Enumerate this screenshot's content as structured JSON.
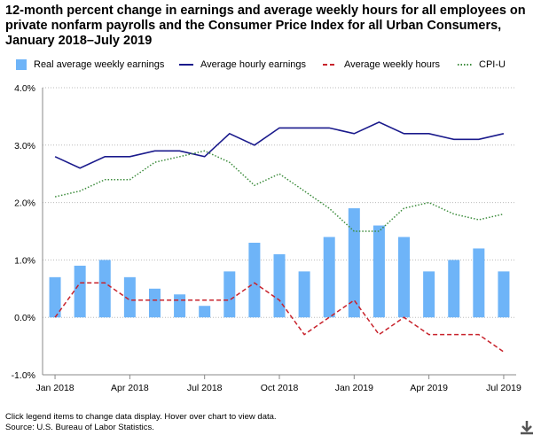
{
  "chart_data": {
    "type": "bar-line",
    "title": "12-month percent change in earnings and average weekly hours for all employees on private nonfarm payrolls and the Consumer Price Index for all Urban Consumers, January 2018–July 2019",
    "x": [
      "Jan 2018",
      "Feb 2018",
      "Mar 2018",
      "Apr 2018",
      "May 2018",
      "Jun 2018",
      "Jul 2018",
      "Aug 2018",
      "Sep 2018",
      "Oct 2018",
      "Nov 2018",
      "Dec 2018",
      "Jan 2019",
      "Feb 2019",
      "Mar 2019",
      "Apr 2019",
      "May 2019",
      "Jun 2019",
      "Jul 2019"
    ],
    "x_tick_labels": [
      {
        "index": 0,
        "label": "Jan 2018"
      },
      {
        "index": 3,
        "label": "Apr 2018"
      },
      {
        "index": 6,
        "label": "Jul 2018"
      },
      {
        "index": 9,
        "label": "Oct 2018"
      },
      {
        "index": 12,
        "label": "Jan 2019"
      },
      {
        "index": 15,
        "label": "Apr 2019"
      },
      {
        "index": 18,
        "label": "Jul 2019"
      }
    ],
    "y_tick_labels": [
      "4.0%",
      "3.0%",
      "2.0%",
      "1.0%",
      "0.0%",
      "-1.0%"
    ],
    "y_ticks": [
      4,
      3,
      2,
      1,
      0,
      -1
    ],
    "ylim": [
      -1,
      4
    ],
    "grid": true,
    "legend_position": "top",
    "series": [
      {
        "name": "Real average weekly earnings",
        "type": "bar",
        "color": "#6eb4f8",
        "values": [
          0.7,
          0.9,
          1.0,
          0.7,
          0.5,
          0.4,
          0.2,
          0.8,
          1.3,
          1.1,
          0.8,
          1.4,
          1.9,
          1.6,
          1.4,
          0.8,
          1.0,
          1.2,
          0.8
        ]
      },
      {
        "name": "Average hourly earnings",
        "type": "line",
        "style": "solid",
        "color": "#1a1a8c",
        "values": [
          2.8,
          2.6,
          2.8,
          2.8,
          2.9,
          2.9,
          2.8,
          3.2,
          3.0,
          3.3,
          3.3,
          3.3,
          3.2,
          3.4,
          3.2,
          3.2,
          3.1,
          3.1,
          3.2
        ]
      },
      {
        "name": "Average weekly hours",
        "type": "line",
        "style": "dashed",
        "color": "#c8232c",
        "values": [
          0.0,
          0.6,
          0.6,
          0.3,
          0.3,
          0.3,
          0.3,
          0.3,
          0.6,
          0.3,
          -0.3,
          0.0,
          0.3,
          -0.3,
          0.0,
          -0.3,
          -0.3,
          -0.3,
          -0.6
        ]
      },
      {
        "name": "CPI-U",
        "type": "line",
        "style": "dotted",
        "color": "#3c8c3c",
        "values": [
          2.1,
          2.2,
          2.4,
          2.4,
          2.7,
          2.8,
          2.9,
          2.7,
          2.3,
          2.5,
          2.2,
          1.9,
          1.5,
          1.5,
          1.9,
          2.0,
          1.8,
          1.7,
          1.8
        ]
      }
    ]
  },
  "footer": {
    "line1": "Click legend items to change data display. Hover over chart to view data.",
    "line2": "Source: U.S. Bureau of Labor Statistics."
  },
  "icons": {
    "download": "download-icon"
  }
}
